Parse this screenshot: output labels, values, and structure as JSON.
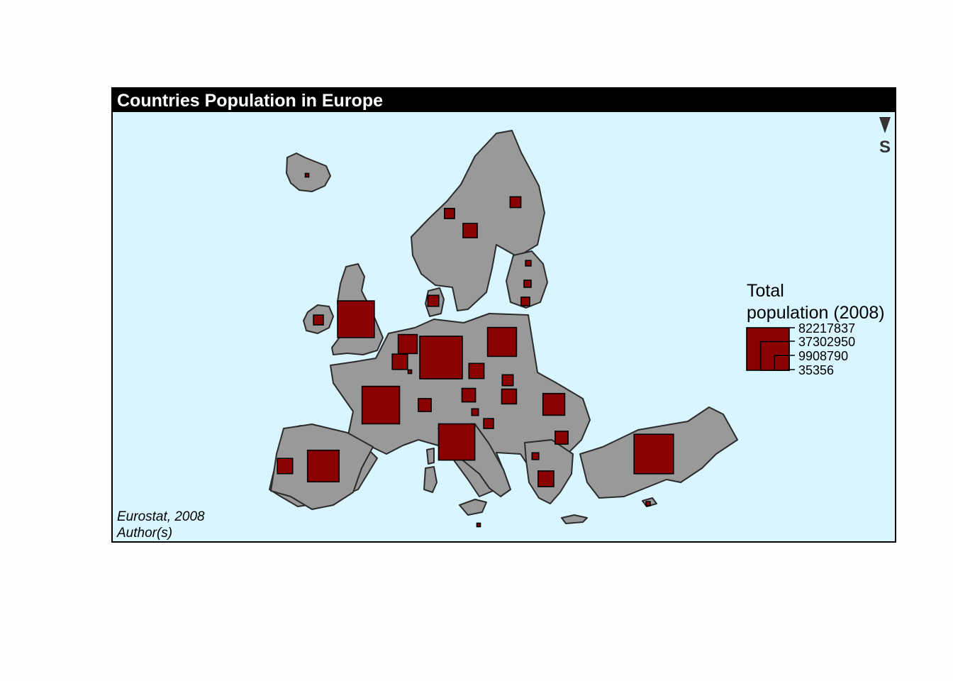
{
  "map": {
    "title": "Countries Population in Europe",
    "background_color": "#d9f5ff",
    "land_color": "#999999",
    "symbol_color": "#8b0000",
    "arrow": {
      "icon": "north-arrow-icon",
      "label": "S"
    },
    "source": "Eurostat, 2008",
    "author": "Author(s)"
  },
  "legend": {
    "title_line1": "Total",
    "title_line2": "population (2008)",
    "values": [
      "82217837",
      "37302950",
      "9908790",
      "35356"
    ]
  },
  "chart_data": {
    "type": "proportional-symbol-map",
    "variable": "Total population (2008)",
    "symbol": "square",
    "legend_values": [
      82217837,
      37302950,
      9908790,
      35356
    ]
  }
}
